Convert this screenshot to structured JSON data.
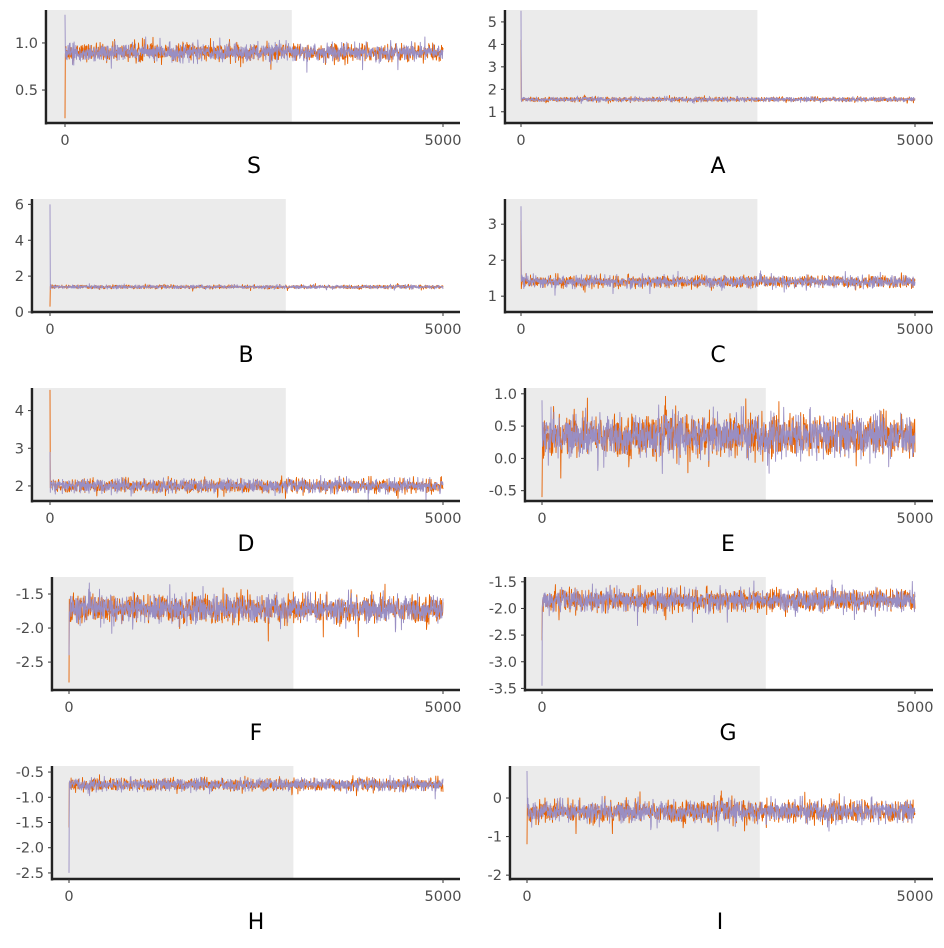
{
  "chart_data": [
    {
      "type": "line",
      "title": "S",
      "ylim": [
        0.15,
        1.35
      ],
      "yticks": [
        "0.5",
        "1.0"
      ],
      "ytick_values": [
        0.5,
        1.0
      ],
      "xticks": [
        "0",
        "5000"
      ],
      "xlim": [
        0,
        5000
      ],
      "warmup_end": 3000,
      "mean": 0.9,
      "sd": 0.045,
      "start": {
        "chain1": 0.2,
        "chain2": 1.3
      }
    },
    {
      "type": "line",
      "title": "A",
      "ylim": [
        0.5,
        5.53
      ],
      "yticks": [
        "1",
        "2",
        "3",
        "4",
        "5"
      ],
      "ytick_values": [
        1,
        2,
        3,
        4,
        5
      ],
      "xticks": [
        "0",
        "5000"
      ],
      "xlim": [
        0,
        5000
      ],
      "warmup_end": 3000,
      "mean": 1.55,
      "sd": 0.05,
      "start": {
        "chain1": 4.2,
        "chain2": 5.5
      }
    },
    {
      "type": "line",
      "title": "B",
      "ylim": [
        0,
        6.3
      ],
      "yticks": [
        "0",
        "2",
        "4",
        "6"
      ],
      "ytick_values": [
        0,
        2,
        4,
        6
      ],
      "xticks": [
        "0",
        "5000"
      ],
      "xlim": [
        0,
        5000
      ],
      "warmup_end": 3000,
      "mean": 1.4,
      "sd": 0.05,
      "start": {
        "chain1": 0.3,
        "chain2": 6.0
      }
    },
    {
      "type": "line",
      "title": "C",
      "ylim": [
        0.56,
        3.7
      ],
      "yticks": [
        "1",
        "2",
        "3"
      ],
      "ytick_values": [
        1,
        2,
        3
      ],
      "xticks": [
        "0",
        "5000"
      ],
      "xlim": [
        0,
        5000
      ],
      "warmup_end": 3000,
      "mean": 1.4,
      "sd": 0.08,
      "start": {
        "chain1": 3.1,
        "chain2": 3.5
      }
    },
    {
      "type": "line",
      "title": "D",
      "ylim": [
        1.6,
        4.6
      ],
      "yticks": [
        "2",
        "3",
        "4"
      ],
      "ytick_values": [
        2,
        3,
        4
      ],
      "xticks": [
        "0",
        "5000"
      ],
      "xlim": [
        0,
        5000
      ],
      "warmup_end": 3000,
      "mean": 2.0,
      "sd": 0.09,
      "start": {
        "chain1": 4.55,
        "chain2": 2.9
      }
    },
    {
      "type": "line",
      "title": "E",
      "ylim": [
        -0.66,
        1.09
      ],
      "yticks": [
        "-0.5",
        "0.0",
        "0.5",
        "1.0"
      ],
      "ytick_values": [
        -0.5,
        0,
        0.5,
        1.0
      ],
      "xticks": [
        "0",
        "5000"
      ],
      "xlim": [
        0,
        5000
      ],
      "warmup_end": 3000,
      "mean": 0.35,
      "sd": 0.16,
      "start": {
        "chain1": -0.6,
        "chain2": 0.9
      }
    },
    {
      "type": "line",
      "title": "F",
      "ylim": [
        -2.91,
        -1.25
      ],
      "yticks": [
        "-2.5",
        "-2.0",
        "-1.5"
      ],
      "ytick_values": [
        -2.5,
        -2.0,
        -1.5
      ],
      "xticks": [
        "0",
        "5000"
      ],
      "xlim": [
        0,
        5000
      ],
      "warmup_end": 3000,
      "mean": -1.72,
      "sd": 0.1,
      "start": {
        "chain1": -2.8,
        "chain2": -2.4
      }
    },
    {
      "type": "line",
      "title": "G",
      "ylim": [
        -3.53,
        -1.41
      ],
      "yticks": [
        "-3.5",
        "-3.0",
        "-2.5",
        "-2.0",
        "-1.5"
      ],
      "ytick_values": [
        -3.5,
        -3.0,
        -2.5,
        -2.0,
        -1.5
      ],
      "xticks": [
        "0",
        "5000"
      ],
      "xlim": [
        0,
        5000
      ],
      "warmup_end": 3000,
      "mean": -1.85,
      "sd": 0.1,
      "start": {
        "chain1": -2.6,
        "chain2": -3.45
      }
    },
    {
      "type": "line",
      "title": "H",
      "ylim": [
        -2.62,
        -0.38
      ],
      "yticks": [
        "-2.5",
        "-2.0",
        "-1.5",
        "-1.0",
        "-0.5"
      ],
      "ytick_values": [
        -2.5,
        -2.0,
        -1.5,
        -1.0,
        -0.5
      ],
      "xticks": [
        "0",
        "5000"
      ],
      "xlim": [
        0,
        5000
      ],
      "warmup_end": 3000,
      "mean": -0.75,
      "sd": 0.06,
      "start": {
        "chain1": -1.6,
        "chain2": -2.5
      }
    },
    {
      "type": "line",
      "title": "I",
      "ylim": [
        -2.1,
        0.83
      ],
      "yticks": [
        "-2",
        "-1",
        "0"
      ],
      "ytick_values": [
        -2,
        -1,
        0
      ],
      "xticks": [
        "0",
        "5000"
      ],
      "xlim": [
        0,
        5000
      ],
      "warmup_end": 3000,
      "mean": -0.35,
      "sd": 0.14,
      "start": {
        "chain1": -1.2,
        "chain2": 0.7
      }
    }
  ],
  "series_colors": {
    "chain1": "#e66101",
    "chain2": "#998ec3"
  },
  "warmup_color": "#ebebeb"
}
